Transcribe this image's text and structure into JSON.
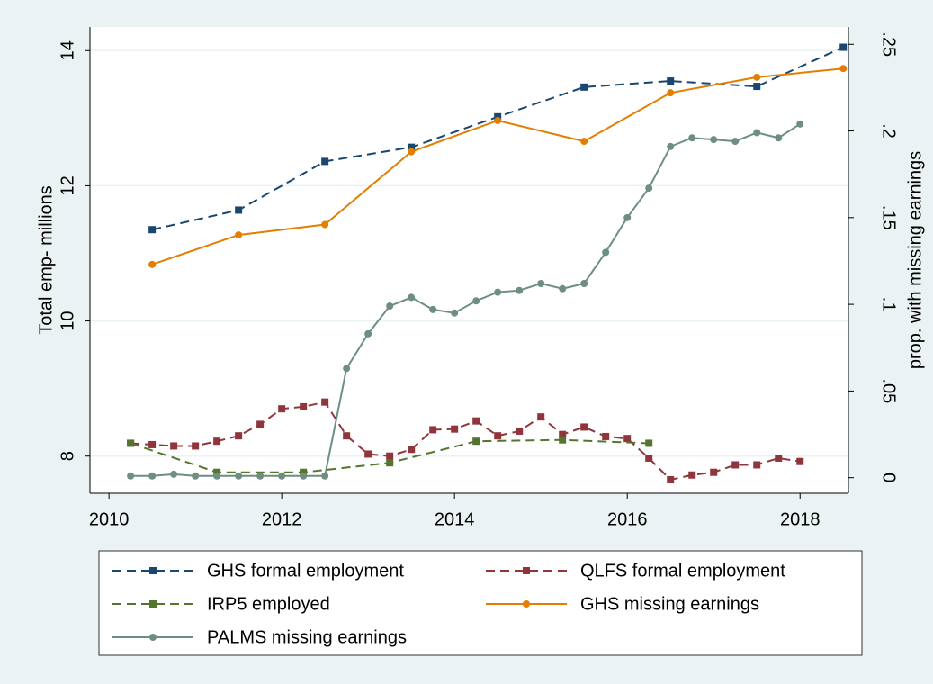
{
  "chart_data": {
    "type": "line",
    "xlim": [
      2009.78,
      2018.56
    ],
    "xticks": [
      2010,
      2012,
      2014,
      2016,
      2018
    ],
    "ylim": [
      7.45,
      14.35
    ],
    "yticks": [
      8,
      10,
      12,
      14
    ],
    "y2lim": [
      -0.009,
      0.26
    ],
    "y2ticks": [
      {
        "value": 0,
        "label": "0"
      },
      {
        "value": 0.05,
        "label": ".05"
      },
      {
        "value": 0.1,
        "label": ".1"
      },
      {
        "value": 0.15,
        "label": ".15"
      },
      {
        "value": 0.2,
        "label": ".2"
      },
      {
        "value": 0.25,
        "label": ".25"
      }
    ],
    "ylabel": "Total emp- millions",
    "y2label": "prop. with missing earnings",
    "grid": true,
    "legend": "bottom",
    "series": [
      {
        "name": "GHS formal employment",
        "color": "#1a476f",
        "dashed": true,
        "marker": "square",
        "x": [
          2010.5,
          2011.5,
          2012.5,
          2013.5,
          2014.5,
          2015.5,
          2016.5,
          2017.5,
          2018.5
        ],
        "values": [
          11.35,
          11.64,
          12.36,
          12.57,
          13.02,
          13.46,
          13.55,
          13.47,
          14.05
        ]
      },
      {
        "name": "QLFS formal employment",
        "color": "#90353b",
        "dashed": true,
        "marker": "square",
        "x": [
          2010.25,
          2010.5,
          2010.75,
          2011,
          2011.25,
          2011.5,
          2011.75,
          2012,
          2012.25,
          2012.5,
          2012.75,
          2013,
          2013.25,
          2013.5,
          2013.75,
          2014,
          2014.25,
          2014.5,
          2014.75,
          2015,
          2015.25,
          2015.5,
          2015.75,
          2016,
          2016.25,
          2016.5,
          2016.75,
          2017,
          2017.25,
          2017.5,
          2017.75,
          2018
        ],
        "values": [
          8.19,
          8.17,
          8.15,
          8.15,
          8.22,
          8.3,
          8.47,
          8.7,
          8.73,
          8.8,
          8.3,
          8.03,
          8.0,
          8.1,
          8.39,
          8.4,
          8.52,
          8.3,
          8.37,
          8.58,
          8.32,
          8.43,
          8.29,
          8.26,
          7.97,
          7.65,
          7.72,
          7.76,
          7.87,
          7.87,
          7.97,
          7.92
        ]
      },
      {
        "name": "IRP5 employed",
        "color": "#55752f",
        "dashed": true,
        "marker": "square",
        "x": [
          2010.25,
          2011.25,
          2012.25,
          2013.25,
          2014.25,
          2015.25,
          2016.25
        ],
        "values": [
          8.19,
          7.76,
          7.76,
          7.9,
          8.22,
          8.24,
          8.19
        ]
      },
      {
        "name": "GHS missing earnings",
        "color": "#e37e00",
        "dashed": false,
        "marker": "circle",
        "axis": "y2",
        "x": [
          2010.5,
          2011.5,
          2012.5,
          2013.5,
          2014.5,
          2015.5,
          2016.5,
          2017.5,
          2018.5
        ],
        "values": [
          0.123,
          0.14,
          0.146,
          0.188,
          0.206,
          0.194,
          0.222,
          0.231,
          0.236
        ]
      },
      {
        "name": "PALMS missing earnings",
        "color": "#6e8e84",
        "dashed": false,
        "marker": "circle",
        "axis": "y2",
        "x": [
          2010.25,
          2010.5,
          2010.75,
          2011,
          2011.25,
          2011.5,
          2011.75,
          2012,
          2012.25,
          2012.5,
          2012.75,
          2013,
          2013.25,
          2013.5,
          2013.75,
          2014,
          2014.25,
          2014.5,
          2014.75,
          2015,
          2015.25,
          2015.5,
          2015.75,
          2016,
          2016.25,
          2016.5,
          2016.75,
          2017,
          2017.25,
          2017.5,
          2017.75,
          2018
        ],
        "values": [
          0.001,
          0.001,
          0.002,
          0.001,
          0.001,
          0.001,
          0.001,
          0.001,
          0.001,
          0.001,
          0.063,
          0.083,
          0.099,
          0.104,
          0.097,
          0.095,
          0.102,
          0.107,
          0.108,
          0.112,
          0.109,
          0.112,
          0.13,
          0.15,
          0.167,
          0.191,
          0.196,
          0.195,
          0.194,
          0.199,
          0.196,
          0.204
        ]
      }
    ]
  }
}
